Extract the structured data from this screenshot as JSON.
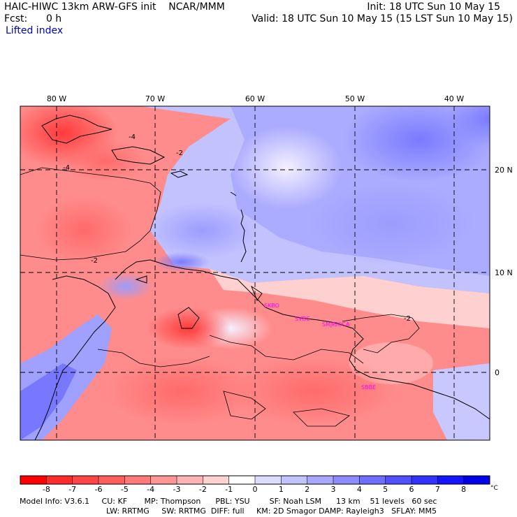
{
  "header": {
    "title": "HAIC-HIWC 13km ARW-GFS init    NCAR/MMM",
    "fcst": "Fcst:      0 h",
    "variable": "Lifted index",
    "init": "Init: 18 UTC Sun 10 May 15",
    "valid": "Valid: 18 UTC Sun 10 May 15 (15 LST Sun 10 May 15)"
  },
  "map": {
    "lon_labels": [
      "80 W",
      "70 W",
      "60 W",
      "50 W",
      "40 W"
    ],
    "lat_labels": [
      "20 N",
      "10 N",
      "0"
    ],
    "station_labels": [
      "SKBO",
      "SVBC",
      "SMJP",
      "SOCA",
      "SBBE"
    ],
    "contour_labels": [
      "-4",
      "-2",
      "-4",
      "-2",
      "-2"
    ],
    "colors": {
      "frame": "#000000",
      "grid": "#000000",
      "station": "#ff00ff",
      "coast": "#000000"
    }
  },
  "colorbar": {
    "ticks": [
      "-8",
      "-7",
      "-6",
      "-5",
      "-4",
      "-3",
      "-2",
      "-1",
      "0",
      "1",
      "2",
      "3",
      "4",
      "5",
      "6",
      "7",
      "8"
    ],
    "unit": "°C",
    "colors": [
      "#ff0000",
      "#ff2a2a",
      "#ff4545",
      "#ff5e5e",
      "#ff7a7a",
      "#ff9696",
      "#ffb4b4",
      "#ffd2d2",
      "#ffffff",
      "#dcdcff",
      "#c2c2ff",
      "#a8a8ff",
      "#8c8cff",
      "#6e6eff",
      "#5050ff",
      "#3232ff",
      "#1414ff",
      "#0000e8"
    ]
  },
  "footer": {
    "line1": "Model Info: V3.6.1     CU: KF       MP: Thompson      PBL: YSU        SF: Noah LSM      13 km    51 levels   60 sec",
    "line2": "LW: RRTMG     SW: RRTMG  DIFF: full     KM: 2D Smagor DAMP: Rayleigh3   SFLAY: MM5"
  }
}
